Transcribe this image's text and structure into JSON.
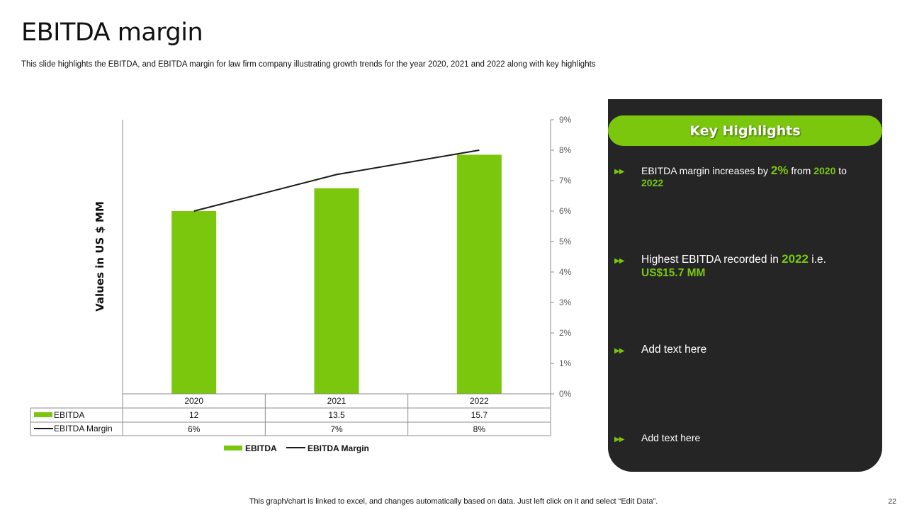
{
  "title": "EBITDA margin",
  "subtitle": "This slide highlights the EBITDA, and EBITDA  margin for law firm company illustrating growth trends for the year 2020, 2021 and 2022 along with key highlights",
  "chart_data": {
    "type": "bar",
    "categories": [
      "2020",
      "2021",
      "2022"
    ],
    "series": [
      {
        "name": "EBITDA",
        "kind": "bar",
        "values": [
          12,
          13.5,
          15.7
        ],
        "labels": [
          "12",
          "13.5",
          "15.7"
        ],
        "color": "#7ac70e"
      },
      {
        "name": "EBITDA Margin",
        "kind": "line",
        "values": [
          6,
          7.2,
          8
        ],
        "labels": [
          "6%",
          "7%",
          "8%"
        ],
        "color": "#1a1a1a",
        "axis": "right"
      }
    ],
    "ylabel": "Values in US $ MM",
    "ylim": [
      0,
      18
    ],
    "y2lim": [
      0,
      9
    ],
    "y2_ticks": [
      "0%",
      "1%",
      "2%",
      "3%",
      "4%",
      "5%",
      "6%",
      "7%",
      "8%",
      "9%"
    ],
    "legend": [
      "EBITDA",
      "EBITDA Margin"
    ],
    "data_table": true
  },
  "highlights": {
    "heading": "Key Highlights",
    "items": [
      {
        "pre": "EBITDA margin increases by ",
        "h1": "2%",
        "mid": " from ",
        "h2": "2020",
        "mid2": " to ",
        "h3": "2022"
      },
      {
        "pre": "Highest EBITDA recorded in ",
        "h1": "2022",
        "mid": " i.e. ",
        "h2": "US$15.7 MM"
      },
      {
        "text": "Add text here"
      },
      {
        "text": "Add text here"
      }
    ]
  },
  "footer": "This graph/chart is linked to excel, and changes automatically based on data. Just left click on it and select “Edit Data”.",
  "page_number": "22",
  "colors": {
    "accent": "#7ac70e",
    "panel": "#252525"
  }
}
